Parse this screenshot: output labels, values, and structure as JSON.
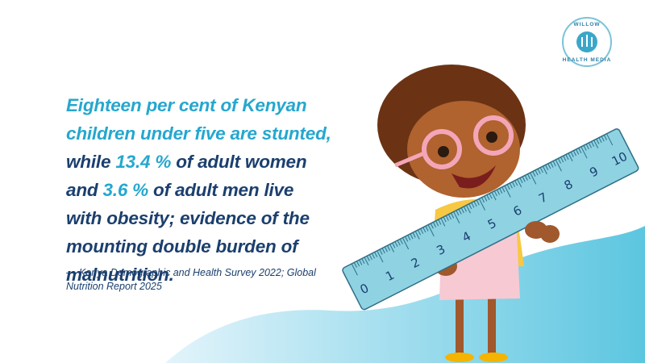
{
  "logo": {
    "top": "WILLOW",
    "bottom": "HEALTH MEDIA"
  },
  "quote": {
    "lines": [
      "Eighteen per cent of Kenyan",
      "children under five are stunted,",
      "while ",
      " of adult women",
      "and ",
      " of adult men live",
      "with obesity; evidence of the",
      "mounting double burden of",
      "malnutrition."
    ],
    "women_stat": "13.4 %",
    "men_stat": "3.6 %"
  },
  "source": [
    "— Kenya Demographic and Health Survey 2022; Global",
    "Nutrition Report 2025"
  ],
  "ruler": {
    "labels": [
      0,
      1,
      2,
      3,
      4,
      5,
      6,
      7,
      8,
      9,
      10
    ]
  }
}
